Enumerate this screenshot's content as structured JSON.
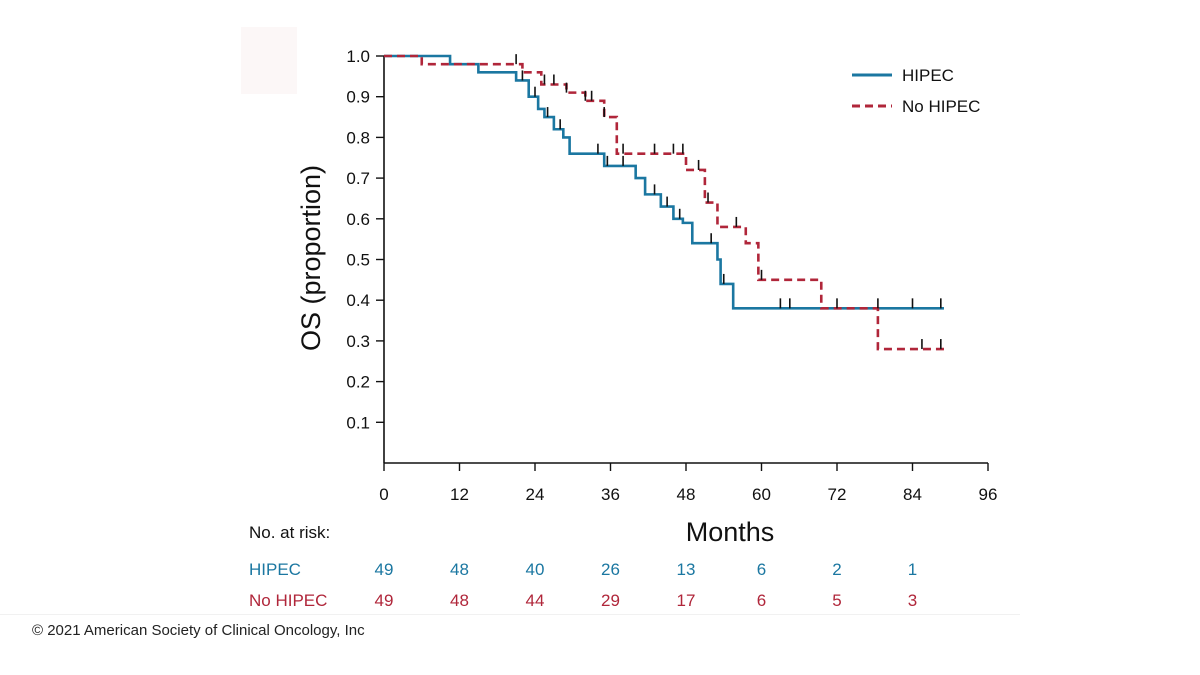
{
  "chart_data": {
    "type": "line",
    "subtype": "kaplan-meier",
    "title": "",
    "xlabel": "Months",
    "ylabel": "OS (proportion)",
    "xlim": [
      0,
      96
    ],
    "ylim": [
      0,
      1
    ],
    "x_ticks": [
      "0",
      "12",
      "24",
      "36",
      "48",
      "60",
      "72",
      "84",
      "96"
    ],
    "y_ticks": [
      "0.1",
      "0.2",
      "0.3",
      "0.4",
      "0.5",
      "0.6",
      "0.7",
      "0.8",
      "0.9",
      "1.0"
    ],
    "legend_position": "top-right",
    "series": [
      {
        "name": "HIPEC",
        "color": "#1b77a1",
        "dash": "solid",
        "steps": [
          [
            0,
            1.0
          ],
          [
            10.5,
            0.98
          ],
          [
            15,
            0.96
          ],
          [
            21,
            0.94
          ],
          [
            23,
            0.9
          ],
          [
            24.5,
            0.87
          ],
          [
            25.5,
            0.85
          ],
          [
            27,
            0.82
          ],
          [
            28.5,
            0.8
          ],
          [
            29.5,
            0.76
          ],
          [
            35,
            0.73
          ],
          [
            40,
            0.7
          ],
          [
            41.5,
            0.66
          ],
          [
            44,
            0.63
          ],
          [
            46,
            0.6
          ],
          [
            47.5,
            0.59
          ],
          [
            49,
            0.54
          ],
          [
            53,
            0.5
          ],
          [
            53.5,
            0.44
          ],
          [
            55.5,
            0.38
          ],
          [
            89,
            0.38
          ]
        ],
        "censor": [
          22,
          24,
          26,
          28,
          34,
          35.5,
          38,
          43,
          45,
          47,
          52,
          54,
          63,
          64.5,
          72,
          78.5,
          84,
          88.5
        ]
      },
      {
        "name": "No HIPEC",
        "color": "#b0263a",
        "dash": "dashed",
        "steps": [
          [
            0,
            1.0
          ],
          [
            6,
            0.98
          ],
          [
            14,
            0.98
          ],
          [
            22,
            0.96
          ],
          [
            25,
            0.93
          ],
          [
            29,
            0.91
          ],
          [
            32,
            0.89
          ],
          [
            35,
            0.85
          ],
          [
            37,
            0.76
          ],
          [
            47,
            0.76
          ],
          [
            48,
            0.72
          ],
          [
            51,
            0.64
          ],
          [
            53,
            0.58
          ],
          [
            57.5,
            0.54
          ],
          [
            59.5,
            0.45
          ],
          [
            69.5,
            0.38
          ],
          [
            78,
            0.38
          ],
          [
            78.5,
            0.28
          ],
          [
            89,
            0.28
          ]
        ],
        "censor": [
          21,
          25.5,
          27,
          29,
          32,
          33,
          35,
          38,
          43,
          46,
          47.5,
          50,
          51.5,
          56,
          60,
          85.5,
          88.5
        ]
      }
    ]
  },
  "risk_table": {
    "title": "No. at risk:",
    "times": [
      "0",
      "12",
      "24",
      "36",
      "48",
      "60",
      "72",
      "84"
    ],
    "rows": [
      {
        "name": "HIPEC",
        "color": "#1b77a1",
        "values": [
          "49",
          "48",
          "40",
          "26",
          "13",
          "6",
          "2",
          "1"
        ]
      },
      {
        "name": "No HIPEC",
        "color": "#b0263a",
        "values": [
          "49",
          "48",
          "44",
          "29",
          "17",
          "6",
          "5",
          "3"
        ]
      }
    ]
  },
  "footer": {
    "copyright": "© 2021 American Society of Clinical Oncology, Inc"
  }
}
